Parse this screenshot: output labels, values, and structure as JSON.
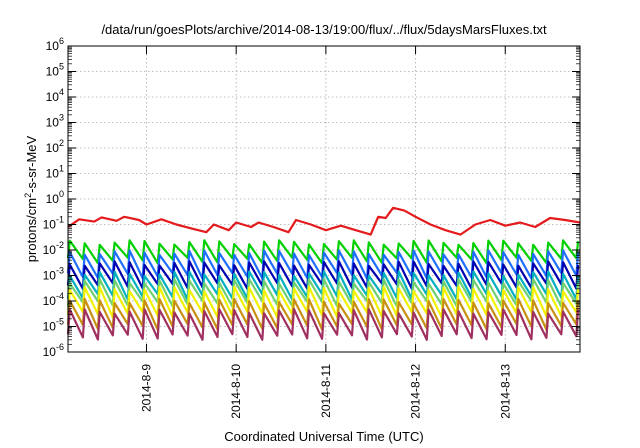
{
  "chart_data": {
    "type": "line",
    "title": "/data/run/goesPlots/archive/2014-08-13/19:00/flux/../flux/5daysMarsFluxes.txt",
    "xlabel": "Coordinated Universal Time (UTC)",
    "ylabel": "protons/cm2-s-sr-MeV",
    "yscale": "log",
    "ylim": [
      1e-06,
      1000000.0
    ],
    "xlim": [
      "2014-08-08 03:00",
      "2014-08-13 20:00"
    ],
    "y_ticks": [
      {
        "base": "10",
        "exp": "-6",
        "value": 1e-06
      },
      {
        "base": "10",
        "exp": "-5",
        "value": 1e-05
      },
      {
        "base": "10",
        "exp": "-4",
        "value": 0.0001
      },
      {
        "base": "10",
        "exp": "-3",
        "value": 0.001
      },
      {
        "base": "10",
        "exp": "-2",
        "value": 0.01
      },
      {
        "base": "10",
        "exp": "-1",
        "value": 0.1
      },
      {
        "base": "10",
        "exp": "0",
        "value": 1
      },
      {
        "base": "10",
        "exp": "1",
        "value": 10
      },
      {
        "base": "10",
        "exp": "2",
        "value": 100
      },
      {
        "base": "10",
        "exp": "3",
        "value": 1000
      },
      {
        "base": "10",
        "exp": "4",
        "value": 10000
      },
      {
        "base": "10",
        "exp": "5",
        "value": 100000
      },
      {
        "base": "10",
        "exp": "6",
        "value": 1000000
      }
    ],
    "x_ticks": [
      {
        "label": "2014-8-9",
        "value": "2014-08-09 00:00"
      },
      {
        "label": "2014-8-10",
        "value": "2014-08-10 00:00"
      },
      {
        "label": "2014-8-11",
        "value": "2014-08-11 00:00"
      },
      {
        "label": "2014-8-12",
        "value": "2014-08-12 00:00"
      },
      {
        "label": "2014-8-13",
        "value": "2014-08-13 00:00"
      }
    ],
    "grid": true,
    "legend": "none",
    "series": [
      {
        "color": "#e41a1c",
        "points": [
          [
            "2014-08-08 03:00",
            0.08
          ],
          [
            "2014-08-08 06:00",
            0.16
          ],
          [
            "2014-08-08 10:00",
            0.13
          ],
          [
            "2014-08-08 12:00",
            0.19
          ],
          [
            "2014-08-08 16:00",
            0.14
          ],
          [
            "2014-08-08 18:00",
            0.2
          ],
          [
            "2014-08-08 22:00",
            0.15
          ],
          [
            "2014-08-09 00:00",
            0.1
          ],
          [
            "2014-08-09 04:00",
            0.16
          ],
          [
            "2014-08-09 08:00",
            0.1
          ],
          [
            "2014-08-09 12:00",
            0.07
          ],
          [
            "2014-08-09 16:00",
            0.05
          ],
          [
            "2014-08-09 18:00",
            0.1
          ],
          [
            "2014-08-09 22:00",
            0.06
          ],
          [
            "2014-08-10 00:00",
            0.12
          ],
          [
            "2014-08-10 04:00",
            0.08
          ],
          [
            "2014-08-10 06:00",
            0.12
          ],
          [
            "2014-08-10 10:00",
            0.08
          ],
          [
            "2014-08-10 14:00",
            0.05
          ],
          [
            "2014-08-10 16:00",
            0.15
          ],
          [
            "2014-08-10 20:00",
            0.1
          ],
          [
            "2014-08-11 00:00",
            0.06
          ],
          [
            "2014-08-11 04:00",
            0.09
          ],
          [
            "2014-08-11 08:00",
            0.06
          ],
          [
            "2014-08-11 12:00",
            0.04
          ],
          [
            "2014-08-11 14:00",
            0.2
          ],
          [
            "2014-08-11 16:00",
            0.18
          ],
          [
            "2014-08-11 18:00",
            0.45
          ],
          [
            "2014-08-11 21:00",
            0.35
          ],
          [
            "2014-08-12 00:00",
            0.2
          ],
          [
            "2014-08-12 04:00",
            0.1
          ],
          [
            "2014-08-12 08:00",
            0.06
          ],
          [
            "2014-08-12 12:00",
            0.04
          ],
          [
            "2014-08-12 16:00",
            0.1
          ],
          [
            "2014-08-12 20:00",
            0.15
          ],
          [
            "2014-08-13 00:00",
            0.09
          ],
          [
            "2014-08-13 04:00",
            0.12
          ],
          [
            "2014-08-13 08:00",
            0.08
          ],
          [
            "2014-08-13 12:00",
            0.18
          ],
          [
            "2014-08-13 16:00",
            0.15
          ],
          [
            "2014-08-13 20:00",
            0.12
          ]
        ]
      },
      {
        "color": "#00d000",
        "sawtooth": {
          "high": 0.02,
          "low": 0.004
        }
      },
      {
        "color": "#1f6fff",
        "sawtooth": {
          "high": 0.008,
          "low": 0.001
        }
      },
      {
        "color": "#0000b0",
        "sawtooth": {
          "high": 0.003,
          "low": 0.0004
        }
      },
      {
        "color": "#00b0c0",
        "sawtooth": {
          "high": 0.0012,
          "low": 0.00015
        }
      },
      {
        "color": "#70d070",
        "sawtooth": {
          "high": 0.0006,
          "low": 8e-05
        }
      },
      {
        "color": "#f2f200",
        "sawtooth": {
          "high": 0.0003,
          "low": 3e-05
        }
      },
      {
        "color": "#c89010",
        "sawtooth": {
          "high": 0.0001,
          "low": 1e-05
        }
      },
      {
        "color": "#a03060",
        "sawtooth": {
          "high": 4e-05,
          "low": 4e-06
        }
      }
    ]
  }
}
